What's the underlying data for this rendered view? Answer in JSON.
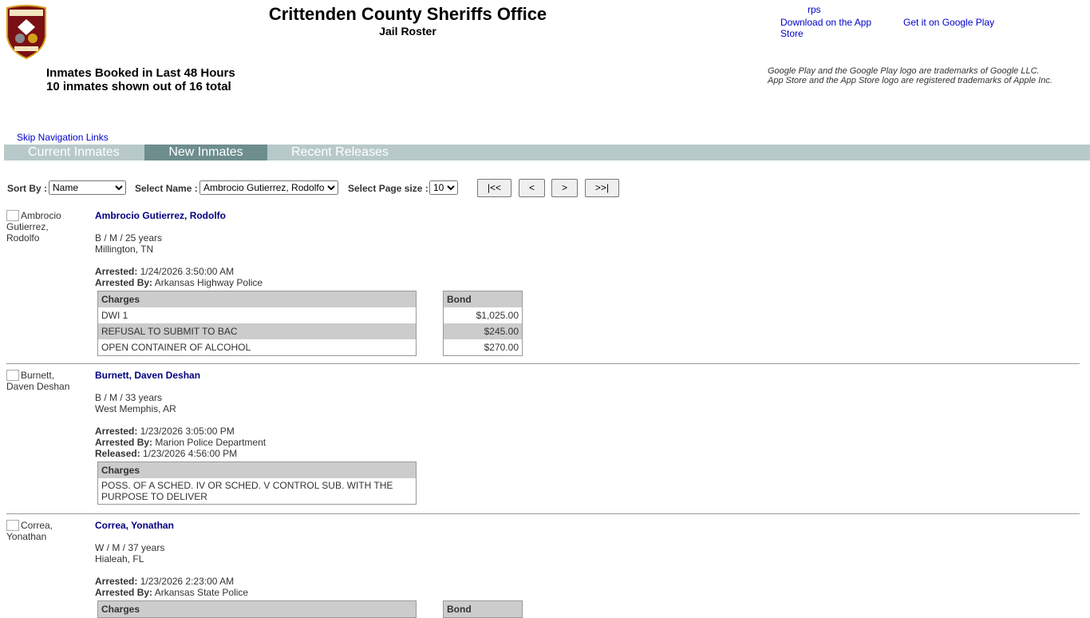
{
  "header": {
    "title": "Crittenden County Sheriffs Office",
    "subtitle": "Jail Roster",
    "logo_text": "Crittenden Co. Sheriff",
    "booked": "Inmates Booked in Last 48 Hours",
    "shown": "10 inmates shown out of 16 total",
    "rps_alt": "rps",
    "app_store": "Download on the App Store",
    "google_play": "Get it on Google Play",
    "tm1": "Google Play and the Google Play logo are trademarks of Google LLC.",
    "tm2": "App Store and the App Store logo are registered trademarks of Apple Inc."
  },
  "nav": {
    "skip": "Skip Navigation Links",
    "tabs": [
      "Current Inmates",
      "New Inmates",
      "Recent Releases"
    ],
    "active": "New Inmates",
    "colors": {
      "bar": "#b8c9c9",
      "active": "#6e8d8d"
    }
  },
  "controls": {
    "sort_label": "Sort By :",
    "sort_value": "Name",
    "name_label": "Select Name :",
    "name_value": "Ambrocio Gutierrez, Rodolfo",
    "size_label": "Select Page size :",
    "size_value": "10",
    "first": "|<<",
    "prev": "<",
    "next": ">",
    "last": ">>|"
  },
  "labels": {
    "arrested": "Arrested:",
    "arrested_by": "Arrested By:",
    "released": "Released:",
    "charges": "Charges",
    "bond": "Bond"
  },
  "inmates": [
    {
      "photo_alt": "Ambrocio Gutierrez, Rodolfo",
      "name": "Ambrocio Gutierrez, Rodolfo",
      "demo": "B / M / 25 years",
      "city": "Millington, TN",
      "arrested": "1/24/2026 3:50:00 AM",
      "arrested_by": "Arkansas Highway Police",
      "charges": [
        "DWI 1",
        "REFUSAL TO SUBMIT TO BAC",
        "OPEN CONTAINER OF ALCOHOL"
      ],
      "bonds": [
        "$1,025.00",
        "$245.00",
        "$270.00"
      ]
    },
    {
      "photo_alt": "Burnett, Daven Deshan",
      "name": "Burnett, Daven Deshan",
      "demo": "B / M / 33 years",
      "city": "West Memphis, AR",
      "arrested": "1/23/2026 3:05:00 PM",
      "arrested_by": "Marion Police Department",
      "released": "1/23/2026 4:56:00 PM",
      "charges": [
        "POSS. OF A SCHED. IV OR SCHED. V CONTROL SUB. WITH THE PURPOSE TO DELIVER"
      ]
    },
    {
      "photo_alt": "Correa, Yonathan",
      "name": "Correa, Yonathan",
      "demo": "W / M / 37 years",
      "city": "Hialeah, FL",
      "arrested": "1/23/2026 2:23:00 AM",
      "arrested_by": "Arkansas State Police"
    }
  ]
}
